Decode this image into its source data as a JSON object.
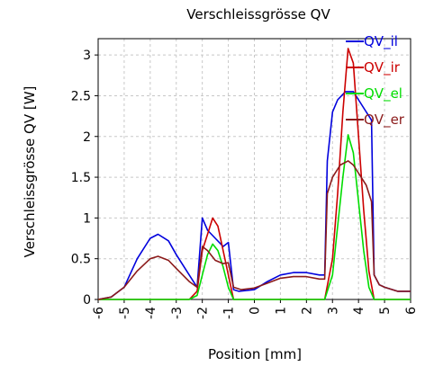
{
  "chart_data": {
    "type": "line",
    "title": "Verschleissgrösse QV",
    "xlabel": "Position [mm]",
    "ylabel": "Verschleissgrösse QV [W]",
    "xlim": [
      -6,
      6
    ],
    "ylim": [
      0,
      3.2
    ],
    "xticks": [
      -6,
      -5,
      -4,
      -3,
      -2,
      -1,
      0,
      1,
      2,
      3,
      4,
      5,
      6
    ],
    "xtick_labels": [
      "-6",
      "-5",
      "-4",
      "-3",
      "-2",
      "-1",
      "0",
      "1",
      "2",
      "3",
      "4",
      "5",
      "6"
    ],
    "yticks": [
      0,
      0.5,
      1,
      1.5,
      2,
      2.5,
      3
    ],
    "ytick_labels": [
      "0",
      "0.5",
      "1",
      "1.5",
      "2",
      "2.5",
      "3"
    ],
    "grid": true,
    "legend_position": "top-right",
    "series": [
      {
        "name": "QV_il",
        "color": "#0000dd",
        "points": [
          [
            -6,
            0
          ],
          [
            -5.5,
            0.03
          ],
          [
            -5,
            0.15
          ],
          [
            -4.5,
            0.5
          ],
          [
            -4,
            0.75
          ],
          [
            -3.7,
            0.8
          ],
          [
            -3.3,
            0.72
          ],
          [
            -3,
            0.55
          ],
          [
            -2.5,
            0.3
          ],
          [
            -2.2,
            0.15
          ],
          [
            -2,
            1.0
          ],
          [
            -1.8,
            0.85
          ],
          [
            -1.5,
            0.75
          ],
          [
            -1.2,
            0.65
          ],
          [
            -1,
            0.7
          ],
          [
            -0.8,
            0.12
          ],
          [
            -0.6,
            0.1
          ],
          [
            0,
            0.12
          ],
          [
            0.5,
            0.22
          ],
          [
            1,
            0.3
          ],
          [
            1.5,
            0.33
          ],
          [
            2,
            0.33
          ],
          [
            2.5,
            0.3
          ],
          [
            2.7,
            0.3
          ],
          [
            2.8,
            1.7
          ],
          [
            3,
            2.3
          ],
          [
            3.2,
            2.45
          ],
          [
            3.5,
            2.55
          ],
          [
            3.8,
            2.55
          ],
          [
            4,
            2.45
          ],
          [
            4.2,
            2.35
          ],
          [
            4.5,
            2.2
          ],
          [
            4.6,
            0.3
          ],
          [
            4.8,
            0.18
          ],
          [
            5,
            0.15
          ],
          [
            5.5,
            0.1
          ],
          [
            6,
            0.1
          ]
        ]
      },
      {
        "name": "QV_ir",
        "color": "#cc0000",
        "points": [
          [
            -6,
            0
          ],
          [
            -5,
            0
          ],
          [
            -4,
            0
          ],
          [
            -3,
            0
          ],
          [
            -2.5,
            0
          ],
          [
            -2.2,
            0.1
          ],
          [
            -2,
            0.6
          ],
          [
            -1.8,
            0.8
          ],
          [
            -1.6,
            1.0
          ],
          [
            -1.4,
            0.9
          ],
          [
            -1.2,
            0.6
          ],
          [
            -1.0,
            0.3
          ],
          [
            -0.8,
            0
          ],
          [
            0,
            0
          ],
          [
            1,
            0
          ],
          [
            2,
            0
          ],
          [
            2.7,
            0
          ],
          [
            3,
            0.5
          ],
          [
            3.2,
            1.3
          ],
          [
            3.4,
            2.3
          ],
          [
            3.6,
            3.08
          ],
          [
            3.8,
            2.9
          ],
          [
            4.0,
            2.0
          ],
          [
            4.2,
            1.1
          ],
          [
            4.4,
            0.35
          ],
          [
            4.6,
            0
          ],
          [
            5,
            0
          ],
          [
            6,
            0
          ]
        ]
      },
      {
        "name": "QV_el",
        "color": "#00dd00",
        "points": [
          [
            -6,
            0
          ],
          [
            -5,
            0
          ],
          [
            -4,
            0
          ],
          [
            -3,
            0
          ],
          [
            -2.5,
            0
          ],
          [
            -2.2,
            0.05
          ],
          [
            -2,
            0.3
          ],
          [
            -1.8,
            0.55
          ],
          [
            -1.6,
            0.68
          ],
          [
            -1.4,
            0.6
          ],
          [
            -1.2,
            0.4
          ],
          [
            -1.0,
            0.15
          ],
          [
            -0.8,
            0
          ],
          [
            0,
            0
          ],
          [
            1,
            0
          ],
          [
            2,
            0
          ],
          [
            2.7,
            0
          ],
          [
            3,
            0.3
          ],
          [
            3.2,
            0.9
          ],
          [
            3.4,
            1.5
          ],
          [
            3.6,
            2.02
          ],
          [
            3.8,
            1.8
          ],
          [
            4.0,
            1.2
          ],
          [
            4.2,
            0.6
          ],
          [
            4.4,
            0.15
          ],
          [
            4.6,
            0
          ],
          [
            5,
            0
          ],
          [
            6,
            0
          ]
        ]
      },
      {
        "name": "QV_er",
        "color": "#8b1a1a",
        "points": [
          [
            -6,
            0
          ],
          [
            -5.5,
            0.03
          ],
          [
            -5,
            0.15
          ],
          [
            -4.5,
            0.35
          ],
          [
            -4,
            0.5
          ],
          [
            -3.7,
            0.53
          ],
          [
            -3.3,
            0.48
          ],
          [
            -3,
            0.38
          ],
          [
            -2.5,
            0.22
          ],
          [
            -2.2,
            0.15
          ],
          [
            -2,
            0.65
          ],
          [
            -1.8,
            0.6
          ],
          [
            -1.5,
            0.48
          ],
          [
            -1.2,
            0.44
          ],
          [
            -1,
            0.45
          ],
          [
            -0.8,
            0.15
          ],
          [
            -0.5,
            0.12
          ],
          [
            0,
            0.14
          ],
          [
            0.5,
            0.2
          ],
          [
            1,
            0.26
          ],
          [
            1.5,
            0.28
          ],
          [
            2,
            0.28
          ],
          [
            2.5,
            0.25
          ],
          [
            2.7,
            0.25
          ],
          [
            2.8,
            1.3
          ],
          [
            3,
            1.5
          ],
          [
            3.3,
            1.65
          ],
          [
            3.6,
            1.7
          ],
          [
            3.8,
            1.65
          ],
          [
            4,
            1.55
          ],
          [
            4.3,
            1.4
          ],
          [
            4.5,
            1.2
          ],
          [
            4.6,
            0.3
          ],
          [
            4.8,
            0.18
          ],
          [
            5,
            0.15
          ],
          [
            5.5,
            0.1
          ],
          [
            6,
            0.1
          ]
        ]
      }
    ]
  }
}
